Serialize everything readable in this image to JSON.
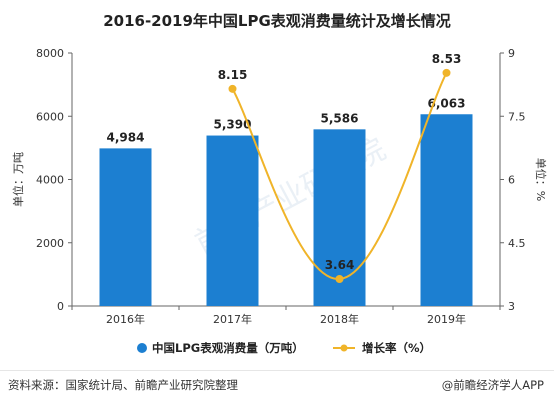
{
  "title": "2016-2019年中国LPG表观消费量统计及增长情况",
  "source_text": "资料来源：国家统计局、前瞻产业研究院整理",
  "brand_text": "@前瞻经济学人APP",
  "watermark": "前瞻产业研究院",
  "chart_data": {
    "type": "bar-line",
    "categories": [
      "2016年",
      "2017年",
      "2018年",
      "2019年"
    ],
    "series": [
      {
        "name": "中国LPG表观消费量（万吨）",
        "type": "bar",
        "axis": "left",
        "color": "#1c7fd1",
        "values": [
          4984,
          5390,
          5586,
          6063
        ],
        "labels": [
          "4,984",
          "5,390",
          "5,586",
          "6,063"
        ]
      },
      {
        "name": "增长率（%）",
        "type": "line",
        "axis": "right",
        "color": "#f0b429",
        "values": [
          null,
          8.15,
          3.64,
          8.53
        ],
        "labels": [
          "",
          "8.15",
          "3.64",
          "8.53"
        ]
      }
    ],
    "ylabel_left": "单位：万吨",
    "ylabel_right": "单位：%",
    "ylim_left": [
      0,
      8000
    ],
    "yticks_left": [
      "0",
      "2000",
      "4000",
      "6000",
      "8000"
    ],
    "ylim_right": [
      3,
      9
    ],
    "yticks_right": [
      "3",
      "4.5",
      "6",
      "7.5",
      "9"
    ],
    "legend_position": "bottom",
    "grid": false
  }
}
